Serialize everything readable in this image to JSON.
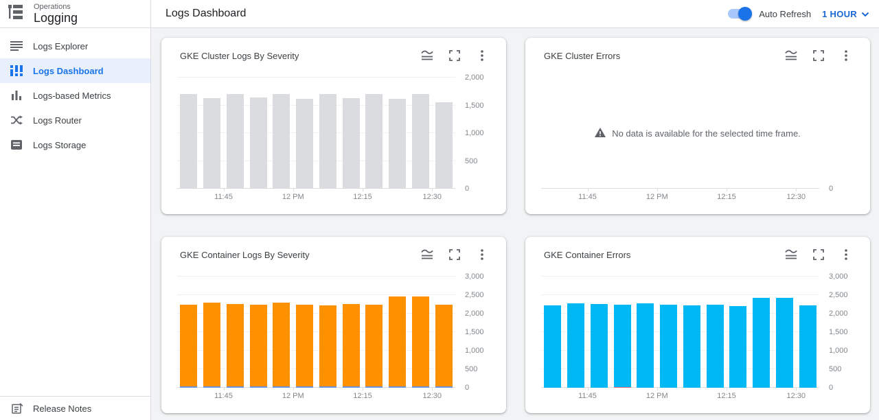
{
  "app": {
    "product": "Operations",
    "name": "Logging"
  },
  "sidebar": {
    "items": [
      {
        "label": "Logs Explorer",
        "icon": "logs-explorer-icon",
        "selected": false
      },
      {
        "label": "Logs Dashboard",
        "icon": "logs-dashboard-icon",
        "selected": true
      },
      {
        "label": "Logs-based Metrics",
        "icon": "logs-based-metrics-icon",
        "selected": false
      },
      {
        "label": "Logs Router",
        "icon": "logs-router-icon",
        "selected": false
      },
      {
        "label": "Logs Storage",
        "icon": "logs-storage-icon",
        "selected": false
      }
    ],
    "footer_item": {
      "label": "Release Notes",
      "icon": "release-notes-icon"
    }
  },
  "header": {
    "title": "Logs Dashboard",
    "auto_refresh_label": "Auto Refresh",
    "auto_refresh_on": true,
    "time_range": "1 HOUR",
    "time_range_icon": "chevron-down-icon"
  },
  "card_action_icons": [
    "chart-options-icon",
    "fullscreen-icon",
    "more-options-icon"
  ],
  "colors": {
    "accent_blue": "#1A73E8",
    "selected_bg": "#E8F0FE",
    "gray_bar": "#DADCE0",
    "orange_bar": "#FF9100",
    "cyan_bar": "#00B8F4",
    "blue_base_bar": "#6C92E4",
    "red_base_bar": "#E8647C",
    "axis_text": "#80868B",
    "page_bg": "#F1F3F4"
  },
  "chart_data": [
    {
      "id": "gke-cluster-logs-by-severity",
      "title": "GKE Cluster Logs By Severity",
      "type": "bar",
      "legend_position": "none",
      "grid": true,
      "ylim": [
        0,
        2000
      ],
      "ymax": 2000,
      "y_ticks": [
        {
          "v": 0,
          "label": "0"
        },
        {
          "v": 500,
          "label": "500"
        },
        {
          "v": 1000,
          "label": "1,000"
        },
        {
          "v": 1500,
          "label": "1,500"
        },
        {
          "v": 2000,
          "label": "2,000"
        }
      ],
      "x_ticks": [
        {
          "pos": 2,
          "label": "11:45"
        },
        {
          "pos": 5,
          "label": "12 PM"
        },
        {
          "pos": 8,
          "label": "12:15"
        },
        {
          "pos": 11,
          "label": "12:30"
        }
      ],
      "series": [
        {
          "name": "logs",
          "color": "#DADCE0",
          "values": [
            1700,
            1625,
            1700,
            1645,
            1705,
            1615,
            1700,
            1635,
            1700,
            1615,
            1700,
            1555
          ]
        }
      ]
    },
    {
      "id": "gke-cluster-errors",
      "title": "GKE Cluster Errors",
      "type": "empty",
      "message": "No data is available for the selected time frame.",
      "message_icon": "warning-icon",
      "ymax": 1,
      "y_ticks": [
        {
          "v": 0,
          "label": "0"
        }
      ],
      "x_ticks": [
        {
          "pos": 2,
          "label": "11:45"
        },
        {
          "pos": 5,
          "label": "12 PM"
        },
        {
          "pos": 8,
          "label": "12:15"
        },
        {
          "pos": 11,
          "label": "12:30"
        }
      ],
      "series": []
    },
    {
      "id": "gke-container-logs-by-severity",
      "title": "GKE Container Logs By Severity",
      "type": "stacked-bar",
      "legend_position": "none",
      "grid": true,
      "ylim": [
        0,
        3000
      ],
      "ymax": 3000,
      "y_ticks": [
        {
          "v": 0,
          "label": "0"
        },
        {
          "v": 500,
          "label": "500"
        },
        {
          "v": 1000,
          "label": "1,000"
        },
        {
          "v": 1500,
          "label": "1,500"
        },
        {
          "v": 2000,
          "label": "2,000"
        },
        {
          "v": 2500,
          "label": "2,500"
        },
        {
          "v": 3000,
          "label": "3,000"
        }
      ],
      "x_ticks": [
        {
          "pos": 2,
          "label": "11:45"
        },
        {
          "pos": 5,
          "label": "12 PM"
        },
        {
          "pos": 8,
          "label": "12:15"
        },
        {
          "pos": 11,
          "label": "12:30"
        }
      ],
      "series": [
        {
          "name": "base-severity",
          "color": "#6C92E4",
          "values": [
            45,
            45,
            45,
            45,
            45,
            45,
            45,
            45,
            45,
            45,
            45,
            45
          ]
        },
        {
          "name": "main-severity",
          "color": "#FF9100",
          "values": [
            2195,
            2250,
            2215,
            2205,
            2245,
            2200,
            2185,
            2220,
            2200,
            2415,
            2410,
            2190
          ]
        }
      ]
    },
    {
      "id": "gke-container-errors",
      "title": "GKE Container Errors",
      "type": "stacked-bar",
      "legend_position": "none",
      "grid": true,
      "ylim": [
        0,
        3000
      ],
      "ymax": 3000,
      "y_ticks": [
        {
          "v": 0,
          "label": "0"
        },
        {
          "v": 500,
          "label": "500"
        },
        {
          "v": 1000,
          "label": "1,000"
        },
        {
          "v": 1500,
          "label": "1,500"
        },
        {
          "v": 2000,
          "label": "2,000"
        },
        {
          "v": 2500,
          "label": "2,500"
        },
        {
          "v": 3000,
          "label": "3,000"
        }
      ],
      "x_ticks": [
        {
          "pos": 2,
          "label": "11:45"
        },
        {
          "pos": 5,
          "label": "12 PM"
        },
        {
          "pos": 8,
          "label": "12:15"
        },
        {
          "pos": 11,
          "label": "12:30"
        }
      ],
      "series": [
        {
          "name": "error-base",
          "color": "#E8647C",
          "values": [
            0,
            0,
            0,
            20,
            0,
            0,
            0,
            0,
            0,
            0,
            0,
            0
          ]
        },
        {
          "name": "errors",
          "color": "#00B8F4",
          "values": [
            2225,
            2285,
            2255,
            2225,
            2280,
            2240,
            2220,
            2250,
            2210,
            2435,
            2430,
            2220
          ]
        }
      ]
    }
  ]
}
